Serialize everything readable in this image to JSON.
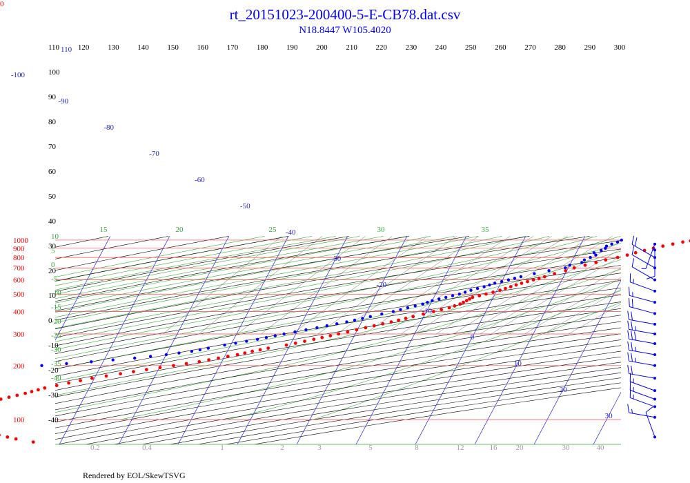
{
  "header": {
    "title": "rt_20151023-200400-5-E-CB78.dat.csv",
    "subtitle": "N18.8447 W105.4020",
    "corner_label": "0"
  },
  "footer": {
    "credit": "Rendered by EOL/SkewTSVG"
  },
  "colors": {
    "isobar": "#ff4444",
    "isotherm": "#2222dd",
    "dry_adiabat": "#000000",
    "moist_adiabat": "#33aa33",
    "mixing_ratio": "#999999",
    "temperature": "#ff0000",
    "dewpoint": "#0000ff",
    "wind": "#0000ff"
  },
  "chart_data": {
    "type": "skew-t",
    "pressure_ticks": [
      "100",
      "200",
      "300",
      "400",
      "500",
      "600",
      "700",
      "800",
      "900",
      "1000"
    ],
    "top_temperature_scale": [
      "110",
      "120",
      "130",
      "140",
      "150",
      "160",
      "170",
      "180",
      "190",
      "200",
      "210",
      "220",
      "230",
      "240",
      "250",
      "260",
      "270",
      "280",
      "290",
      "300"
    ],
    "isotherm_labels": [
      "-100",
      "-90",
      "-80",
      "-70",
      "-60",
      "-50",
      "-40",
      "-30",
      "-20",
      "-10",
      "0",
      "10",
      "20",
      "30"
    ],
    "isotherm_label_top": "110",
    "dry_adiabat_labels": [
      "100",
      "90",
      "80",
      "70",
      "60",
      "50",
      "40",
      "30",
      "20",
      "10",
      "0",
      "-10",
      "-20",
      "-30",
      "-40"
    ],
    "moist_adiabat_labels": [
      "15",
      "20",
      "25",
      "30",
      "35",
      "10",
      "5",
      "0",
      "-5",
      "-10",
      "-15",
      "-20",
      "-25",
      "-30",
      "-35",
      "-40"
    ],
    "mixing_ratio_labels": [
      "0.2",
      "0.4",
      "1",
      "2",
      "3",
      "5",
      "8",
      "12",
      "16",
      "20",
      "30",
      "40"
    ],
    "temperature_profile": [
      [
        1000,
        29.5
      ],
      [
        990,
        28.2
      ],
      [
        975,
        27.0
      ],
      [
        950,
        25.5
      ],
      [
        925,
        24.0
      ],
      [
        900,
        22.6
      ],
      [
        875,
        21.3
      ],
      [
        850,
        20.0
      ],
      [
        825,
        18.8
      ],
      [
        800,
        17.4
      ],
      [
        775,
        15.6
      ],
      [
        750,
        14.2
      ],
      [
        725,
        12.6
      ],
      [
        700,
        11.0
      ],
      [
        675,
        9.8
      ],
      [
        650,
        8.2
      ],
      [
        625,
        6.8
      ],
      [
        600,
        5.2
      ],
      [
        575,
        3.5
      ],
      [
        550,
        2.0
      ],
      [
        525,
        0.5
      ],
      [
        500,
        -1.5
      ],
      [
        480,
        -3.5
      ],
      [
        460,
        -4.2
      ],
      [
        440,
        -5.0
      ],
      [
        420,
        -6.5
      ],
      [
        400,
        -8.8
      ],
      [
        375,
        -11.8
      ],
      [
        350,
        -15.0
      ],
      [
        325,
        -18.8
      ],
      [
        300,
        -22.8
      ],
      [
        280,
        -26.5
      ],
      [
        260,
        -30.6
      ],
      [
        250,
        -33.4
      ],
      [
        240,
        -35.8
      ],
      [
        230,
        -38.0
      ],
      [
        220,
        -40.9
      ],
      [
        210,
        -43.8
      ],
      [
        200,
        -47.8
      ],
      [
        190,
        -52.0
      ],
      [
        180,
        -56.0
      ],
      [
        170,
        -60.4
      ],
      [
        160,
        -63.9
      ],
      [
        150,
        -67.5
      ],
      [
        140,
        -70.3
      ],
      [
        130,
        -73.9
      ],
      [
        120,
        -77.2
      ],
      [
        110,
        -80.5
      ],
      [
        100,
        -83.5
      ],
      [
        96,
        -83.1
      ],
      [
        92,
        -80.9
      ],
      [
        88,
        -79.1
      ],
      [
        85,
        -74.4
      ],
      [
        82,
        -71.0
      ],
      [
        78,
        -67.8
      ],
      [
        75,
        -64.6
      ]
    ],
    "dewpoint_profile": [
      [
        1000,
        16.5
      ],
      [
        975,
        16.0
      ],
      [
        950,
        15.2
      ],
      [
        925,
        14.5
      ],
      [
        900,
        14.5
      ],
      [
        875,
        14.0
      ],
      [
        850,
        13.0
      ],
      [
        825,
        13.5
      ],
      [
        800,
        12.8
      ],
      [
        775,
        12.0
      ],
      [
        750,
        11.8
      ],
      [
        725,
        10.0
      ],
      [
        700,
        9.5
      ],
      [
        675,
        7.0
      ],
      [
        650,
        4.8
      ],
      [
        625,
        2.8
      ],
      [
        600,
        1.0
      ],
      [
        575,
        -1.0
      ],
      [
        550,
        -2.5
      ],
      [
        525,
        -4.4
      ],
      [
        500,
        -6.0
      ],
      [
        480,
        -8.0
      ],
      [
        460,
        -10.0
      ],
      [
        440,
        -11.3
      ],
      [
        420,
        -13.5
      ],
      [
        400,
        -15.6
      ],
      [
        375,
        -19.0
      ],
      [
        350,
        -22.5
      ],
      [
        325,
        -27.0
      ],
      [
        300,
        -32.0
      ],
      [
        280,
        -36.0
      ],
      [
        260,
        -41.0
      ],
      [
        250,
        -43.5
      ],
      [
        240,
        -46.0
      ],
      [
        230,
        -50.0
      ],
      [
        220,
        -55.0
      ],
      [
        210,
        -62.0
      ],
      [
        200,
        -70.0
      ]
    ],
    "wind_barbs": [
      {
        "pressure": 80,
        "speed_kt": 10,
        "direction_deg": 340
      },
      {
        "pressure": 103,
        "speed_kt": 15,
        "direction_deg": 280
      },
      {
        "pressure": 118,
        "speed_kt": 15,
        "direction_deg": 290
      },
      {
        "pressure": 130,
        "speed_kt": 15,
        "direction_deg": 290
      },
      {
        "pressure": 145,
        "speed_kt": 15,
        "direction_deg": 290
      },
      {
        "pressure": 170,
        "speed_kt": 20,
        "direction_deg": 280
      },
      {
        "pressure": 200,
        "speed_kt": 25,
        "direction_deg": 280
      },
      {
        "pressure": 230,
        "speed_kt": 25,
        "direction_deg": 280
      },
      {
        "pressure": 265,
        "speed_kt": 30,
        "direction_deg": 280
      },
      {
        "pressure": 300,
        "speed_kt": 25,
        "direction_deg": 280
      },
      {
        "pressure": 340,
        "speed_kt": 20,
        "direction_deg": 280
      },
      {
        "pressure": 390,
        "speed_kt": 20,
        "direction_deg": 285
      },
      {
        "pressure": 450,
        "speed_kt": 15,
        "direction_deg": 285
      },
      {
        "pressure": 520,
        "speed_kt": 15,
        "direction_deg": 290
      },
      {
        "pressure": 600,
        "speed_kt": 10,
        "direction_deg": 300
      },
      {
        "pressure": 700,
        "speed_kt": 10,
        "direction_deg": 300
      },
      {
        "pressure": 800,
        "speed_kt": 20,
        "direction_deg": 300
      },
      {
        "pressure": 880,
        "speed_kt": 10,
        "direction_deg": 180
      },
      {
        "pressure": 950,
        "speed_kt": 5,
        "direction_deg": 200
      }
    ]
  }
}
